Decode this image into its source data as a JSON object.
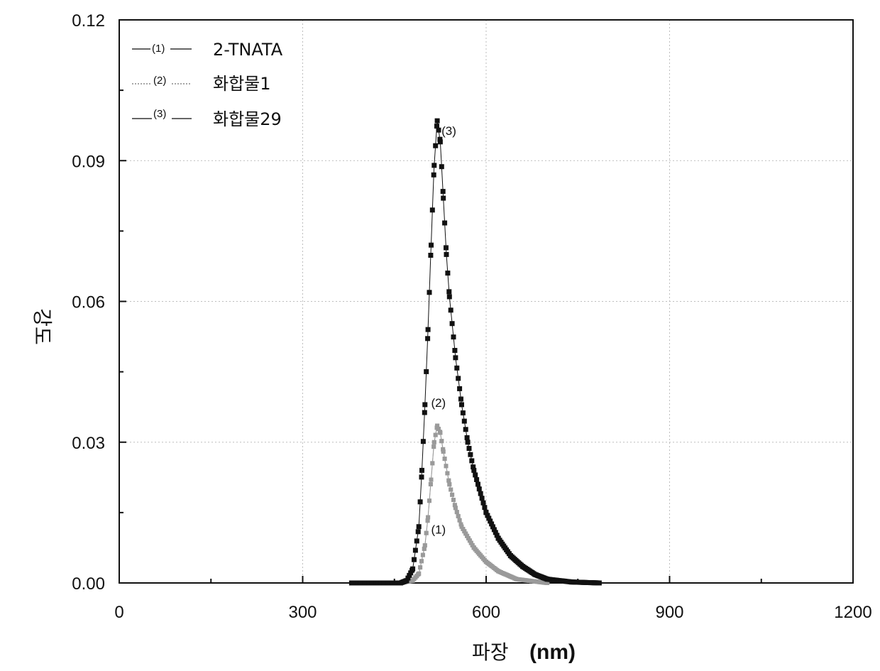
{
  "chart_data": {
    "type": "scatter",
    "xlabel": "파장",
    "xlabel_unit": "(nm)",
    "ylabel": "강도",
    "xlim": [
      0,
      1200
    ],
    "ylim": [
      0,
      0.12
    ],
    "x_ticks": [
      "0",
      "300",
      "600",
      "900",
      "1200"
    ],
    "y_ticks": [
      "0.00",
      "0.03",
      "0.06",
      "0.09",
      "0.12"
    ],
    "x_tick_values": [
      0,
      300,
      600,
      900,
      1200
    ],
    "y_tick_values": [
      0,
      0.03,
      0.06,
      0.09,
      0.12
    ],
    "grid": true,
    "legend_position": "top-left",
    "series": [
      {
        "name": "2-TNATA",
        "tag": "(1)",
        "color": "#9a9a9a",
        "marker": "square",
        "x": [
          380,
          460,
          480,
          490,
          500,
          505,
          510,
          515,
          520,
          525,
          530,
          540,
          550,
          560,
          580,
          600,
          620,
          650,
          700
        ],
        "y": [
          0,
          0,
          0.0005,
          0.002,
          0.008,
          0.014,
          0.022,
          0.03,
          0.0335,
          0.032,
          0.028,
          0.021,
          0.016,
          0.012,
          0.0075,
          0.0045,
          0.0025,
          0.0008,
          0
        ]
      },
      {
        "name": "화합물1",
        "tag": "(2)",
        "color": "#b0b0b0",
        "marker": "square",
        "x": [
          380,
          460,
          480,
          490,
          500,
          505,
          510,
          515,
          520,
          525,
          530,
          540,
          550,
          560,
          580,
          600,
          620,
          650,
          700
        ],
        "y": [
          0,
          0,
          0.0005,
          0.002,
          0.008,
          0.014,
          0.022,
          0.03,
          0.0335,
          0.032,
          0.028,
          0.021,
          0.016,
          0.012,
          0.0075,
          0.0045,
          0.0025,
          0.0008,
          0
        ]
      },
      {
        "name": "화합물29",
        "tag": "(3)",
        "color": "#111111",
        "marker": "square",
        "x": [
          380,
          460,
          470,
          480,
          490,
          495,
          500,
          505,
          510,
          515,
          520,
          525,
          530,
          535,
          540,
          550,
          560,
          570,
          580,
          600,
          620,
          640,
          660,
          680,
          700,
          740,
          785
        ],
        "y": [
          0,
          0,
          0.0005,
          0.003,
          0.012,
          0.024,
          0.038,
          0.054,
          0.072,
          0.089,
          0.0985,
          0.094,
          0.082,
          0.07,
          0.061,
          0.048,
          0.038,
          0.03,
          0.024,
          0.015,
          0.0095,
          0.0058,
          0.0035,
          0.0018,
          0.0008,
          0.0002,
          0
        ]
      }
    ],
    "annotations": [
      {
        "text": "(3)",
        "x": 527,
        "y": 0.0955
      },
      {
        "text": "(2)",
        "x": 510,
        "y": 0.0375
      },
      {
        "text": "(1)",
        "x": 510,
        "y": 0.0105
      }
    ]
  }
}
